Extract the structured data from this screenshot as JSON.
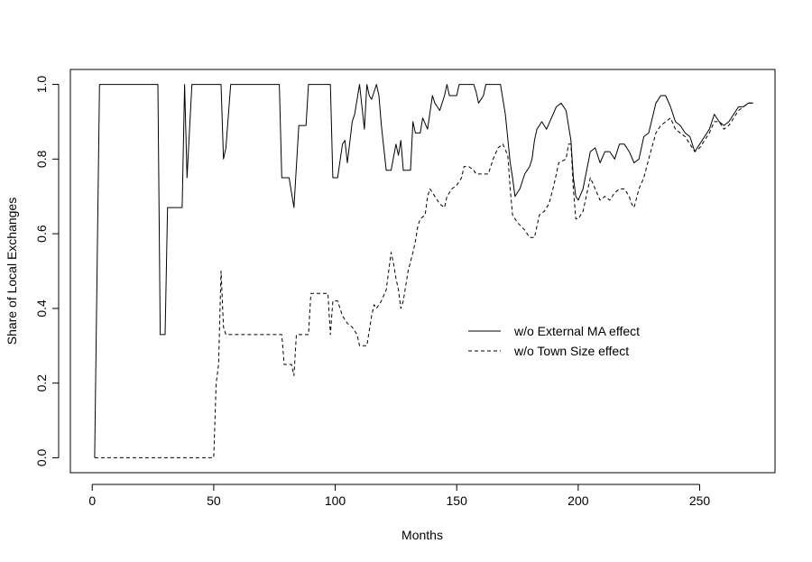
{
  "chart_data": {
    "type": "line",
    "xlabel": "Months",
    "ylabel": "Share of Local Exchanges",
    "xlim": [
      -9,
      281
    ],
    "ylim": [
      -0.04,
      1.04
    ],
    "xticks": [
      "0",
      "50",
      "100",
      "150",
      "200",
      "250"
    ],
    "yticks": [
      "0.0",
      "0.2",
      "0.4",
      "0.6",
      "0.8",
      "1.0"
    ],
    "grid": false,
    "legend": {
      "position": "center-right"
    },
    "series": [
      {
        "name": "w/o External MA effect",
        "line_style": "solid",
        "color": "#000000",
        "points": [
          [
            1,
            0
          ],
          [
            2,
            0.5
          ],
          [
            3,
            1
          ],
          [
            27,
            1
          ],
          [
            28,
            0.33
          ],
          [
            30,
            0.33
          ],
          [
            31,
            0.67
          ],
          [
            37,
            0.67
          ],
          [
            38,
            1
          ],
          [
            39,
            0.75
          ],
          [
            41,
            1
          ],
          [
            53,
            1
          ],
          [
            54,
            0.8
          ],
          [
            55,
            0.83
          ],
          [
            57,
            1
          ],
          [
            77,
            1
          ],
          [
            78,
            0.75
          ],
          [
            81,
            0.75
          ],
          [
            83,
            0.67
          ],
          [
            85,
            0.89
          ],
          [
            88,
            0.89
          ],
          [
            89,
            1
          ],
          [
            98,
            1
          ],
          [
            99,
            0.75
          ],
          [
            101,
            0.75
          ],
          [
            103,
            0.84
          ],
          [
            104,
            0.85
          ],
          [
            105,
            0.79
          ],
          [
            107,
            0.9
          ],
          [
            108,
            0.92
          ],
          [
            110,
            1
          ],
          [
            112,
            0.88
          ],
          [
            113,
            1
          ],
          [
            114,
            0.97
          ],
          [
            115,
            0.96
          ],
          [
            117,
            1
          ],
          [
            118,
            0.97
          ],
          [
            119,
            0.89
          ],
          [
            121,
            0.77
          ],
          [
            123,
            0.77
          ],
          [
            125,
            0.84
          ],
          [
            126,
            0.81
          ],
          [
            127,
            0.85
          ],
          [
            128,
            0.77
          ],
          [
            131,
            0.77
          ],
          [
            132,
            0.9
          ],
          [
            133,
            0.87
          ],
          [
            135,
            0.87
          ],
          [
            136,
            0.91
          ],
          [
            138,
            0.88
          ],
          [
            140,
            0.97
          ],
          [
            141,
            0.95
          ],
          [
            142,
            0.94
          ],
          [
            143,
            0.93
          ],
          [
            145,
            0.97
          ],
          [
            146,
            1
          ],
          [
            147,
            0.97
          ],
          [
            150,
            0.97
          ],
          [
            151,
            1
          ],
          [
            157,
            1
          ],
          [
            158,
            0.98
          ],
          [
            159,
            0.95
          ],
          [
            161,
            0.97
          ],
          [
            162,
            1
          ],
          [
            168,
            1
          ],
          [
            170,
            0.92
          ],
          [
            172,
            0.79
          ],
          [
            173,
            0.75
          ],
          [
            174,
            0.7
          ],
          [
            176,
            0.72
          ],
          [
            178,
            0.76
          ],
          [
            180,
            0.78
          ],
          [
            181,
            0.8
          ],
          [
            182,
            0.85
          ],
          [
            183,
            0.88
          ],
          [
            184,
            0.89
          ],
          [
            185,
            0.9
          ],
          [
            186,
            0.89
          ],
          [
            187,
            0.88
          ],
          [
            189,
            0.91
          ],
          [
            191,
            0.94
          ],
          [
            193,
            0.95
          ],
          [
            195,
            0.93
          ],
          [
            197,
            0.85
          ],
          [
            198,
            0.75
          ],
          [
            199,
            0.7
          ],
          [
            200,
            0.69
          ],
          [
            202,
            0.72
          ],
          [
            205,
            0.82
          ],
          [
            207,
            0.83
          ],
          [
            209,
            0.79
          ],
          [
            211,
            0.82
          ],
          [
            213,
            0.82
          ],
          [
            215,
            0.8
          ],
          [
            217,
            0.84
          ],
          [
            219,
            0.84
          ],
          [
            221,
            0.82
          ],
          [
            223,
            0.79
          ],
          [
            225,
            0.8
          ],
          [
            227,
            0.86
          ],
          [
            229,
            0.87
          ],
          [
            232,
            0.95
          ],
          [
            234,
            0.97
          ],
          [
            236,
            0.97
          ],
          [
            238,
            0.94
          ],
          [
            240,
            0.9
          ],
          [
            242,
            0.89
          ],
          [
            244,
            0.87
          ],
          [
            246,
            0.86
          ],
          [
            248,
            0.82
          ],
          [
            250,
            0.84
          ],
          [
            252,
            0.86
          ],
          [
            254,
            0.88
          ],
          [
            256,
            0.92
          ],
          [
            258,
            0.9
          ],
          [
            260,
            0.89
          ],
          [
            262,
            0.9
          ],
          [
            264,
            0.92
          ],
          [
            266,
            0.94
          ],
          [
            268,
            0.94
          ],
          [
            270,
            0.95
          ],
          [
            272,
            0.95
          ]
        ]
      },
      {
        "name": "w/o Town Size effect",
        "line_style": "dashed",
        "color": "#000000",
        "points": [
          [
            1,
            0
          ],
          [
            50,
            0
          ],
          [
            51,
            0.2
          ],
          [
            52,
            0.25
          ],
          [
            53,
            0.5
          ],
          [
            54,
            0.35
          ],
          [
            55,
            0.33
          ],
          [
            78,
            0.33
          ],
          [
            79,
            0.25
          ],
          [
            82,
            0.25
          ],
          [
            83,
            0.22
          ],
          [
            84,
            0.33
          ],
          [
            89,
            0.33
          ],
          [
            90,
            0.44
          ],
          [
            97,
            0.44
          ],
          [
            98,
            0.33
          ],
          [
            99,
            0.42
          ],
          [
            101,
            0.42
          ],
          [
            103,
            0.38
          ],
          [
            105,
            0.36
          ],
          [
            107,
            0.35
          ],
          [
            109,
            0.33
          ],
          [
            110,
            0.3
          ],
          [
            113,
            0.3
          ],
          [
            115,
            0.38
          ],
          [
            116,
            0.41
          ],
          [
            117,
            0.4
          ],
          [
            119,
            0.42
          ],
          [
            121,
            0.45
          ],
          [
            122,
            0.5
          ],
          [
            123,
            0.55
          ],
          [
            124,
            0.52
          ],
          [
            125,
            0.48
          ],
          [
            126,
            0.45
          ],
          [
            127,
            0.4
          ],
          [
            128,
            0.42
          ],
          [
            130,
            0.5
          ],
          [
            132,
            0.55
          ],
          [
            133,
            0.58
          ],
          [
            134,
            0.62
          ],
          [
            135,
            0.64
          ],
          [
            137,
            0.65
          ],
          [
            138,
            0.7
          ],
          [
            139,
            0.72
          ],
          [
            141,
            0.7
          ],
          [
            143,
            0.68
          ],
          [
            145,
            0.67
          ],
          [
            146,
            0.7
          ],
          [
            148,
            0.72
          ],
          [
            150,
            0.73
          ],
          [
            152,
            0.75
          ],
          [
            153,
            0.78
          ],
          [
            155,
            0.78
          ],
          [
            157,
            0.77
          ],
          [
            158,
            0.76
          ],
          [
            163,
            0.76
          ],
          [
            164,
            0.78
          ],
          [
            165,
            0.8
          ],
          [
            167,
            0.83
          ],
          [
            169,
            0.84
          ],
          [
            171,
            0.81
          ],
          [
            172,
            0.72
          ],
          [
            173,
            0.65
          ],
          [
            175,
            0.63
          ],
          [
            178,
            0.61
          ],
          [
            180,
            0.59
          ],
          [
            182,
            0.59
          ],
          [
            183,
            0.62
          ],
          [
            184,
            0.65
          ],
          [
            186,
            0.66
          ],
          [
            188,
            0.68
          ],
          [
            190,
            0.73
          ],
          [
            192,
            0.79
          ],
          [
            195,
            0.8
          ],
          [
            196,
            0.84
          ],
          [
            197,
            0.84
          ],
          [
            198,
            0.72
          ],
          [
            199,
            0.64
          ],
          [
            200,
            0.64
          ],
          [
            202,
            0.66
          ],
          [
            205,
            0.75
          ],
          [
            207,
            0.72
          ],
          [
            209,
            0.69
          ],
          [
            211,
            0.7
          ],
          [
            213,
            0.69
          ],
          [
            215,
            0.71
          ],
          [
            217,
            0.72
          ],
          [
            219,
            0.72
          ],
          [
            221,
            0.7
          ],
          [
            222,
            0.68
          ],
          [
            223,
            0.67
          ],
          [
            225,
            0.72
          ],
          [
            227,
            0.75
          ],
          [
            229,
            0.8
          ],
          [
            232,
            0.87
          ],
          [
            234,
            0.89
          ],
          [
            236,
            0.9
          ],
          [
            238,
            0.91
          ],
          [
            240,
            0.88
          ],
          [
            242,
            0.87
          ],
          [
            244,
            0.86
          ],
          [
            246,
            0.84
          ],
          [
            248,
            0.82
          ],
          [
            250,
            0.83
          ],
          [
            252,
            0.85
          ],
          [
            254,
            0.87
          ],
          [
            256,
            0.9
          ],
          [
            258,
            0.9
          ],
          [
            260,
            0.88
          ],
          [
            262,
            0.89
          ],
          [
            264,
            0.91
          ],
          [
            266,
            0.93
          ],
          [
            268,
            0.94
          ],
          [
            270,
            0.95
          ],
          [
            272,
            0.95
          ]
        ]
      }
    ]
  }
}
